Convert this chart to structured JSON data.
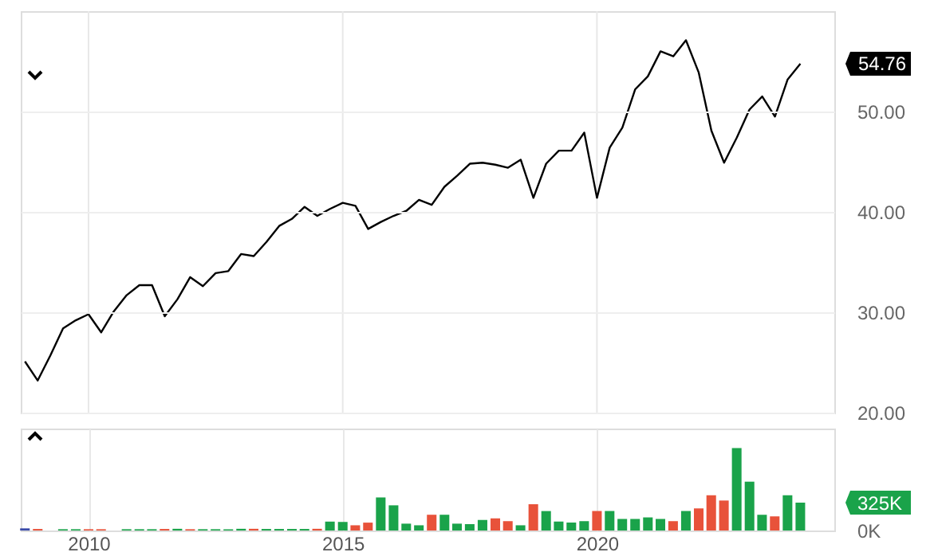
{
  "chart_data": [
    {
      "type": "line",
      "categories": [
        null,
        null,
        null,
        null,
        null,
        null,
        null,
        null,
        null,
        null,
        null,
        null,
        null,
        null,
        null,
        null,
        null,
        null,
        null,
        null,
        null,
        null,
        null,
        null,
        null,
        null,
        null,
        null,
        null,
        null,
        null,
        null,
        null,
        null,
        null,
        null,
        null,
        null,
        null,
        null,
        null,
        null,
        null,
        null,
        null,
        null,
        null,
        null,
        null,
        null,
        null,
        null,
        null,
        null,
        null,
        null,
        null,
        null,
        null,
        null,
        null,
        null
      ],
      "series": [
        {
          "color": "#000000",
          "values": [
            25.1,
            23.2,
            25.7,
            28.4,
            29.2,
            29.8,
            28.0,
            30.1,
            31.7,
            32.7,
            32.7,
            29.6,
            31.3,
            33.5,
            32.6,
            33.9,
            34.1,
            35.8,
            35.6,
            37.0,
            38.6,
            39.3,
            40.5,
            39.6,
            40.3,
            40.9,
            40.6,
            38.3,
            39.0,
            39.6,
            40.1,
            41.2,
            40.7,
            42.5,
            43.6,
            44.8,
            44.9,
            44.7,
            44.4,
            45.2,
            41.4,
            44.8,
            46.1,
            46.1,
            47.9,
            41.4,
            46.4,
            48.4,
            52.2,
            53.5,
            56.0,
            55.5,
            57.1,
            53.9,
            48.1,
            44.9,
            47.4,
            50.2,
            51.5,
            49.5,
            53.2,
            54.76
          ]
        }
      ],
      "ylim": [
        20,
        60
      ],
      "yticks": [
        {
          "value": 20,
          "label": "20.00"
        },
        {
          "value": 30,
          "label": "30.00"
        },
        {
          "value": 40,
          "label": "40.00"
        },
        {
          "value": 50,
          "label": "50.00"
        }
      ],
      "annotations": [
        "54.76"
      ],
      "grid": true,
      "line_style": "solid"
    },
    {
      "type": "bar",
      "x": [
        "2008-10",
        "2009-01",
        "2009-04",
        "2009-07",
        "2009-10",
        "2010-01",
        "2010-04",
        "2010-07",
        "2010-10",
        "2011-01",
        "2011-04",
        "2011-07",
        "2011-10",
        "2012-01",
        "2012-04",
        "2012-07",
        "2012-10",
        "2013-01",
        "2013-04",
        "2013-07",
        "2013-10",
        "2014-01",
        "2014-04",
        "2014-07",
        "2014-10",
        "2015-01",
        "2015-04",
        "2015-07",
        "2015-10",
        "2016-01",
        "2016-04",
        "2016-07",
        "2016-10",
        "2017-01",
        "2017-04",
        "2017-07",
        "2017-10",
        "2018-01",
        "2018-04",
        "2018-07",
        "2018-10",
        "2019-01",
        "2019-04",
        "2019-07",
        "2019-10",
        "2020-01",
        "2020-04",
        "2020-07",
        "2020-10",
        "2021-01",
        "2021-04",
        "2021-07",
        "2021-10",
        "2022-01",
        "2022-04",
        "2022-07",
        "2022-10",
        "2023-01",
        "2023-04",
        "2023-07",
        "2023-10",
        "2024-01"
      ],
      "values": [
        25,
        18,
        null,
        15,
        15,
        15,
        15,
        null,
        15,
        15,
        15,
        18,
        20,
        15,
        15,
        15,
        15,
        20,
        20,
        18,
        18,
        18,
        18,
        20,
        104,
        100,
        61,
        92,
        386,
        294,
        80,
        61,
        184,
        184,
        80,
        74,
        123,
        141,
        110,
        61,
        307,
        227,
        104,
        92,
        110,
        227,
        227,
        135,
        135,
        153,
        135,
        110,
        227,
        258,
        411,
        350,
        962,
        570,
        184,
        166,
        411,
        325
      ],
      "colors": [
        "#3a4aa8",
        "#e8523a",
        "#1aa34a",
        "#1aa34a",
        "#1aa34a",
        "#e8523a",
        "#e8523a",
        "#1aa34a",
        "#1aa34a",
        "#1aa34a",
        "#1aa34a",
        "#e8523a",
        "#1aa34a",
        "#e8523a",
        "#1aa34a",
        "#1aa34a",
        "#1aa34a",
        "#1aa34a",
        "#e8523a",
        "#1aa34a",
        "#1aa34a",
        "#1aa34a",
        "#1aa34a",
        "#e8523a",
        "#1aa34a",
        "#1aa34a",
        "#e8523a",
        "#e8523a",
        "#1aa34a",
        "#1aa34a",
        "#1aa34a",
        "#1aa34a",
        "#e8523a",
        "#1aa34a",
        "#1aa34a",
        "#1aa34a",
        "#1aa34a",
        "#e8523a",
        "#e8523a",
        "#1aa34a",
        "#e8523a",
        "#1aa34a",
        "#1aa34a",
        "#1aa34a",
        "#1aa34a",
        "#e8523a",
        "#1aa34a",
        "#1aa34a",
        "#1aa34a",
        "#1aa34a",
        "#1aa34a",
        "#e8523a",
        "#1aa34a",
        "#e8523a",
        "#e8523a",
        "#e8523a",
        "#1aa34a",
        "#1aa34a",
        "#1aa34a",
        "#e8523a",
        "#1aa34a",
        "#1aa34a"
      ],
      "xlim": [
        "2008-09",
        "2024-09"
      ],
      "xticks": [
        {
          "value": "2010-01",
          "label": "2010"
        },
        {
          "value": "2015-01",
          "label": "2015"
        },
        {
          "value": "2020-01",
          "label": "2020"
        }
      ],
      "ylim": [
        0,
        1190
      ],
      "yticks": [
        {
          "value": 0,
          "label": "0K"
        },
        {
          "value": 325,
          "label": "325K"
        }
      ],
      "grid": "x"
    }
  ]
}
